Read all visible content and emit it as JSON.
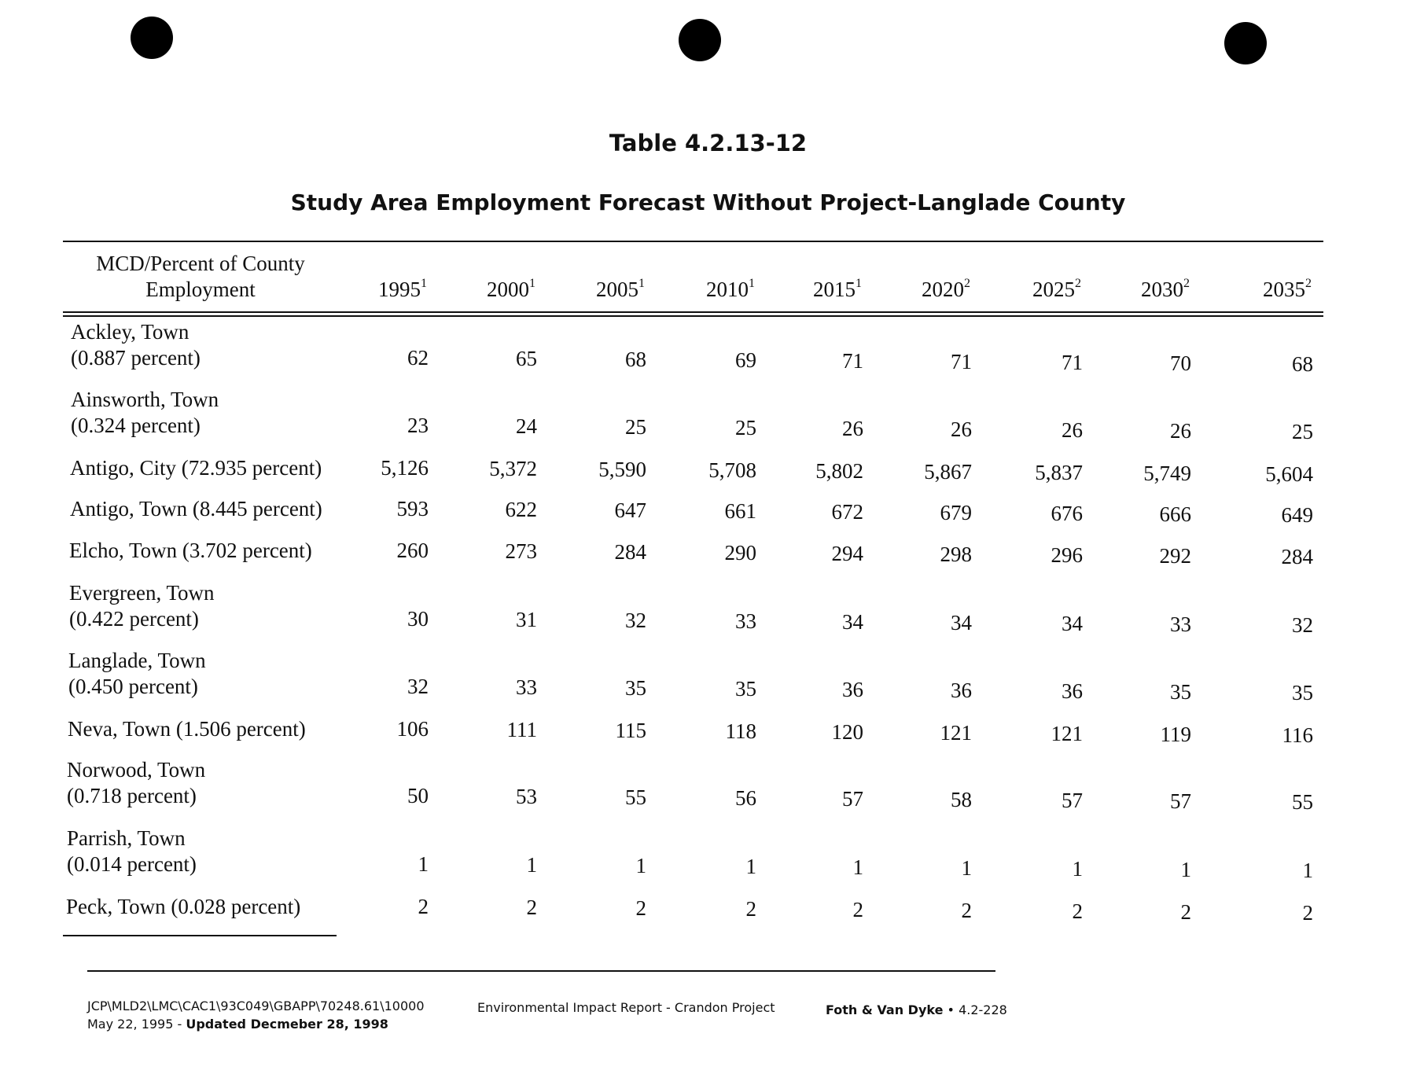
{
  "header": {
    "table_number": "Table 4.2.13-12",
    "title": "Study Area Employment Forecast Without Project-Langlade County"
  },
  "table": {
    "label_header": [
      "MCD/Percent of County",
      "Employment"
    ],
    "columns": [
      {
        "year": "1995",
        "note": "1"
      },
      {
        "year": "2000",
        "note": "1"
      },
      {
        "year": "2005",
        "note": "1"
      },
      {
        "year": "2010",
        "note": "1"
      },
      {
        "year": "2015",
        "note": "1"
      },
      {
        "year": "2020",
        "note": "2"
      },
      {
        "year": "2025",
        "note": "2"
      },
      {
        "year": "2030",
        "note": "2"
      },
      {
        "year": "2035",
        "note": "2"
      }
    ],
    "rows": [
      {
        "label": [
          "Ackley, Town",
          "(0.887 percent)"
        ],
        "values": [
          "62",
          "65",
          "68",
          "69",
          "71",
          "71",
          "71",
          "70",
          "68"
        ]
      },
      {
        "label": [
          "Ainsworth, Town",
          "(0.324 percent)"
        ],
        "values": [
          "23",
          "24",
          "25",
          "25",
          "26",
          "26",
          "26",
          "26",
          "25"
        ]
      },
      {
        "label": [
          "Antigo, City (72.935 percent)"
        ],
        "values": [
          "5,126",
          "5,372",
          "5,590",
          "5,708",
          "5,802",
          "5,867",
          "5,837",
          "5,749",
          "5,604"
        ]
      },
      {
        "label": [
          "Antigo, Town (8.445 percent)"
        ],
        "values": [
          "593",
          "622",
          "647",
          "661",
          "672",
          "679",
          "676",
          "666",
          "649"
        ]
      },
      {
        "label": [
          "Elcho, Town (3.702 percent)"
        ],
        "values": [
          "260",
          "273",
          "284",
          "290",
          "294",
          "298",
          "296",
          "292",
          "284"
        ]
      },
      {
        "label": [
          "Evergreen, Town",
          "(0.422 percent)"
        ],
        "values": [
          "30",
          "31",
          "32",
          "33",
          "34",
          "34",
          "34",
          "33",
          "32"
        ]
      },
      {
        "label": [
          "Langlade, Town",
          "(0.450 percent)"
        ],
        "values": [
          "32",
          "33",
          "35",
          "35",
          "36",
          "36",
          "36",
          "35",
          "35"
        ]
      },
      {
        "label": [
          "Neva, Town (1.506 percent)"
        ],
        "values": [
          "106",
          "111",
          "115",
          "118",
          "120",
          "121",
          "121",
          "119",
          "116"
        ]
      },
      {
        "label": [
          "Norwood, Town",
          "(0.718 percent)"
        ],
        "values": [
          "50",
          "53",
          "55",
          "56",
          "57",
          "58",
          "57",
          "57",
          "55"
        ]
      },
      {
        "label": [
          "Parrish, Town",
          "(0.014 percent)"
        ],
        "values": [
          "1",
          "1",
          "1",
          "1",
          "1",
          "1",
          "1",
          "1",
          "1"
        ]
      },
      {
        "label": [
          "Peck, Town (0.028 percent)"
        ],
        "values": [
          "2",
          "2",
          "2",
          "2",
          "2",
          "2",
          "2",
          "2",
          "2"
        ]
      }
    ]
  },
  "footer": {
    "path": "JCP\\MLD2\\LMC\\CAC1\\93C049\\GBAPP\\70248.61\\10000",
    "date": "May 22, 1995 - ",
    "updated": "Updated Decmeber 28, 1998",
    "report": "Environmental Impact Report - Crandon Project",
    "firm": "Foth & Van Dyke",
    "separator": "•",
    "page": "4.2-228"
  }
}
